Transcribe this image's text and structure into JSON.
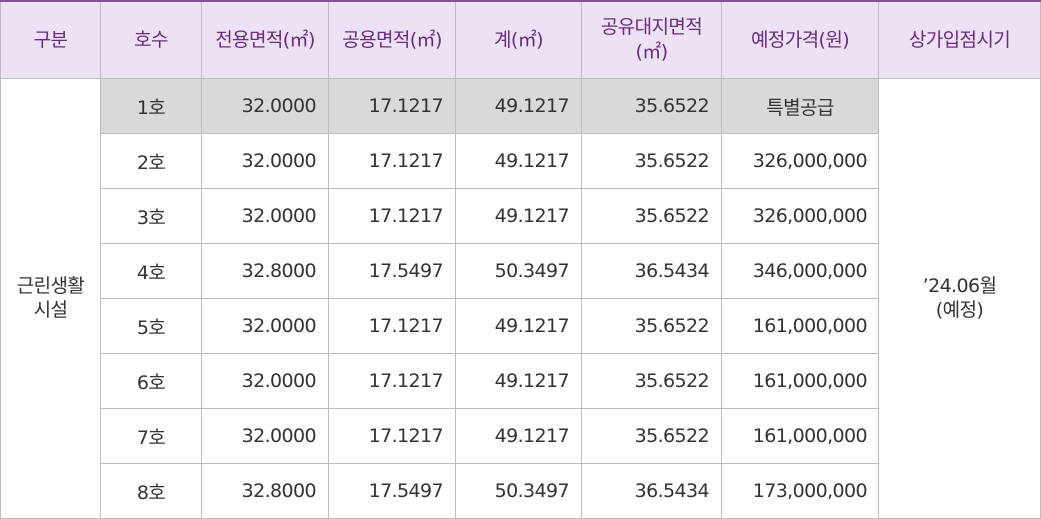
{
  "table": {
    "headers": [
      {
        "label": "구분",
        "sub": ""
      },
      {
        "label": "호수",
        "sub": ""
      },
      {
        "label": "전용면적(㎡)",
        "sub": ""
      },
      {
        "label": "공용면적(㎡)",
        "sub": ""
      },
      {
        "label": "계(㎡)",
        "sub": ""
      },
      {
        "label": "공유대지면적",
        "sub": "(㎡)"
      },
      {
        "label": "예정가격(원)",
        "sub": ""
      },
      {
        "label": "상가입점시기",
        "sub": ""
      }
    ],
    "group": {
      "line1": "근린생활",
      "line2": "시설"
    },
    "move_in": {
      "line1": "’24.06월",
      "line2": "(예정)"
    },
    "rows": [
      {
        "unit": "1호",
        "exclusive": "32.0000",
        "common": "17.1217",
        "total": "49.1217",
        "land": "35.6522",
        "price": "특별공급"
      },
      {
        "unit": "2호",
        "exclusive": "32.0000",
        "common": "17.1217",
        "total": "49.1217",
        "land": "35.6522",
        "price": "326,000,000"
      },
      {
        "unit": "3호",
        "exclusive": "32.0000",
        "common": "17.1217",
        "total": "49.1217",
        "land": "35.6522",
        "price": "326,000,000"
      },
      {
        "unit": "4호",
        "exclusive": "32.8000",
        "common": "17.5497",
        "total": "50.3497",
        "land": "36.5434",
        "price": "346,000,000"
      },
      {
        "unit": "5호",
        "exclusive": "32.0000",
        "common": "17.1217",
        "total": "49.1217",
        "land": "35.6522",
        "price": "161,000,000"
      },
      {
        "unit": "6호",
        "exclusive": "32.0000",
        "common": "17.1217",
        "total": "49.1217",
        "land": "35.6522",
        "price": "161,000,000"
      },
      {
        "unit": "7호",
        "exclusive": "32.0000",
        "common": "17.1217",
        "total": "49.1217",
        "land": "35.6522",
        "price": "161,000,000"
      },
      {
        "unit": "8호",
        "exclusive": "32.8000",
        "common": "17.5497",
        "total": "50.3497",
        "land": "36.5434",
        "price": "173,000,000"
      }
    ]
  },
  "colors": {
    "header_bg": "#ede2f3",
    "header_text": "#6a2a80",
    "header_top_border": "#8a4a9e",
    "highlight_row_bg": "#d9d9d9",
    "grid_border": "#bdbdbd",
    "body_text": "#333333"
  }
}
